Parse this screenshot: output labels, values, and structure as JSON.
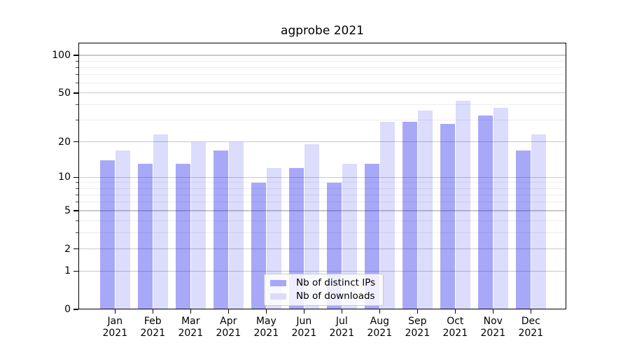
{
  "chart_data": {
    "type": "bar",
    "title": "agprobe 2021",
    "categories": [
      "Jan",
      "Feb",
      "Mar",
      "Apr",
      "May",
      "Jun",
      "Jul",
      "Aug",
      "Sep",
      "Oct",
      "Nov",
      "Dec"
    ],
    "year_label": "2021",
    "series": [
      {
        "name": "Nb of distinct IPs",
        "color": "#a7a7f8",
        "fill": "rgba(15,15,235,0.36)",
        "values": [
          14,
          13,
          13,
          17,
          9,
          12,
          9,
          13,
          29,
          28,
          33,
          17
        ]
      },
      {
        "name": "Nb of downloads",
        "color": "#dcdcf9",
        "fill": "rgba(15,15,235,0.145)",
        "values": [
          17,
          23,
          20,
          20,
          12,
          19,
          13,
          29,
          36,
          43,
          38,
          23
        ]
      }
    ],
    "xlabel": "",
    "ylabel": "",
    "yscale": "log1p",
    "ylim": [
      0,
      126
    ],
    "yticks_major": [
      0,
      1,
      2,
      5,
      10,
      20,
      50,
      100
    ],
    "yticks_minor": [
      3,
      4,
      6,
      7,
      8,
      9,
      30,
      40,
      60,
      70,
      80,
      90
    ],
    "grid": true,
    "legend_position": "lower center"
  }
}
